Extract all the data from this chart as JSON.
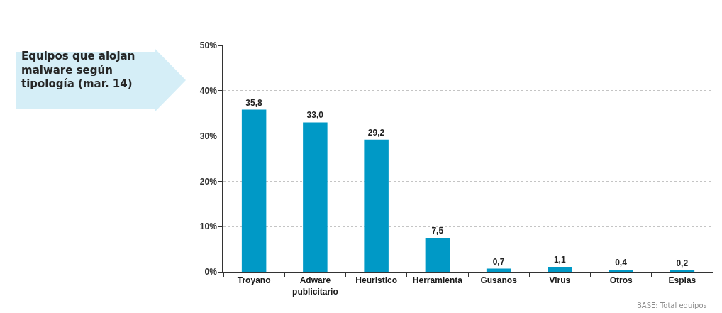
{
  "chart_data": {
    "type": "bar",
    "title": "Equipos que alojan malware según tipología (mar. 14)",
    "categories": [
      "Troyano",
      "Adware publicitario",
      "Heuristico",
      "Herramienta",
      "Gusanos",
      "Virus",
      "Otros",
      "Espias"
    ],
    "values": [
      35.8,
      33.0,
      29.2,
      7.5,
      0.7,
      1.1,
      0.4,
      0.2
    ],
    "value_labels": [
      "35,8",
      "33,0",
      "29,2",
      "7,5",
      "0,7",
      "1,1",
      "0,4",
      "0,2"
    ],
    "color": "#0099c6",
    "ylim": [
      0,
      50
    ],
    "yticks": [
      {
        "value": 0,
        "label": "0%"
      },
      {
        "value": 10,
        "label": "10%"
      },
      {
        "value": 20,
        "label": "20%"
      },
      {
        "value": 30,
        "label": "30%"
      },
      {
        "value": 40,
        "label": "40%"
      },
      {
        "value": 50,
        "label": "50%"
      }
    ],
    "grid": "y",
    "annotations": [
      "BASE: Total equipos"
    ]
  }
}
